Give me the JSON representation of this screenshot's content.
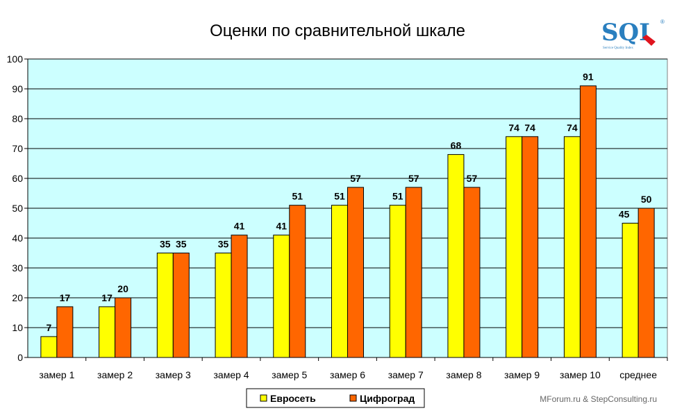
{
  "chart_data": {
    "type": "bar",
    "title": "Оценки по сравнительной шкале",
    "categories": [
      "замер 1",
      "замер 2",
      "замер 3",
      "замер 4",
      "замер 5",
      "замер 6",
      "замер 7",
      "замер 8",
      "замер 9",
      "замер 10",
      "среднее"
    ],
    "series": [
      {
        "name": "Евросеть",
        "color": "#ffff00",
        "values": [
          7,
          17,
          35,
          35,
          41,
          51,
          51,
          68,
          74,
          74,
          45
        ]
      },
      {
        "name": "Цифроград",
        "color": "#ff6600",
        "values": [
          17,
          20,
          35,
          41,
          51,
          57,
          57,
          57,
          74,
          91,
          50
        ]
      }
    ],
    "ylim": [
      0,
      100
    ],
    "yticks": [
      0,
      10,
      20,
      30,
      40,
      50,
      60,
      70,
      80,
      90,
      100
    ],
    "plot_background": "#ccffff",
    "grid": true,
    "legend": "bottom-center"
  },
  "logo": {
    "text": "SQI",
    "subtitle": "Service Quality Index",
    "reg": "®"
  },
  "credit": "MForum.ru & StepConsulting.ru"
}
